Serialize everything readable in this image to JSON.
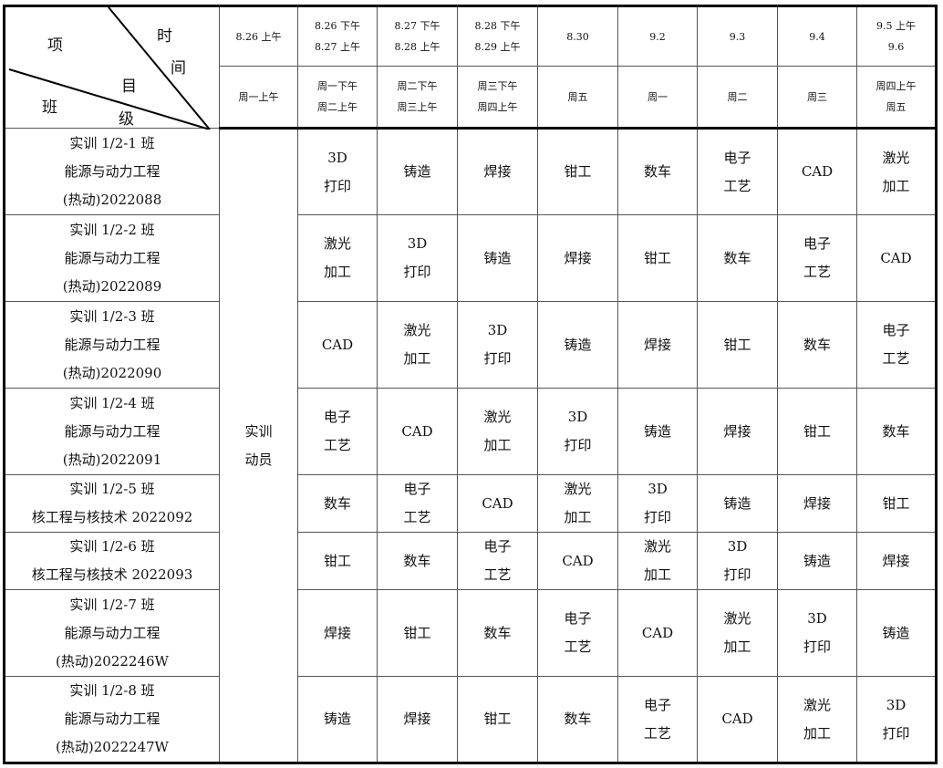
{
  "corner": {
    "top_left": "项",
    "top_right_1": "时",
    "top_right_2": "间",
    "mid": "目",
    "bottom_left": "班",
    "bottom_mid": "级"
  },
  "dates": [
    [
      "8.26 上午"
    ],
    [
      "8.26 下午",
      "8.27 上午"
    ],
    [
      "8.27 下午",
      "8.28 上午"
    ],
    [
      "8.28 下午",
      "8.29 上午"
    ],
    [
      "8.30"
    ],
    [
      "9.2"
    ],
    [
      "9.3"
    ],
    [
      "9.4"
    ],
    [
      "9.5 上午",
      "9.6"
    ]
  ],
  "weekdays": [
    [
      "周一上午"
    ],
    [
      "周一下午",
      "周二上午"
    ],
    [
      "周二下午",
      "周三上午"
    ],
    [
      "周三下午",
      "周四上午"
    ],
    [
      "周五"
    ],
    [
      "周一"
    ],
    [
      "周二"
    ],
    [
      "周三"
    ],
    [
      "周四上午",
      "周五"
    ]
  ],
  "mobilization": [
    "实训",
    "动员"
  ],
  "rows": [
    {
      "cls": [
        "实训 1/2-1 班",
        "能源与动力工程",
        "(热动)2022088"
      ],
      "cells": [
        [
          "3D",
          "打印"
        ],
        [
          "铸造"
        ],
        [
          "焊接"
        ],
        [
          "钳工"
        ],
        [
          "数车"
        ],
        [
          "电子",
          "工艺"
        ],
        [
          "CAD"
        ],
        [
          "激光",
          "加工"
        ]
      ]
    },
    {
      "cls": [
        "实训 1/2-2 班",
        "能源与动力工程",
        "(热动)2022089"
      ],
      "cells": [
        [
          "激光",
          "加工"
        ],
        [
          "3D",
          "打印"
        ],
        [
          "铸造"
        ],
        [
          "焊接"
        ],
        [
          "钳工"
        ],
        [
          "数车"
        ],
        [
          "电子",
          "工艺"
        ],
        [
          "CAD"
        ]
      ]
    },
    {
      "cls": [
        "实训 1/2-3 班",
        "能源与动力工程",
        "(热动)2022090"
      ],
      "cells": [
        [
          "CAD"
        ],
        [
          "激光",
          "加工"
        ],
        [
          "3D",
          "打印"
        ],
        [
          "铸造"
        ],
        [
          "焊接"
        ],
        [
          "钳工"
        ],
        [
          "数车"
        ],
        [
          "电子",
          "工艺"
        ]
      ]
    },
    {
      "cls": [
        "实训 1/2-4 班",
        "能源与动力工程",
        "(热动)2022091"
      ],
      "cells": [
        [
          "电子",
          "工艺"
        ],
        [
          "CAD"
        ],
        [
          "激光",
          "加工"
        ],
        [
          "3D",
          "打印"
        ],
        [
          "铸造"
        ],
        [
          "焊接"
        ],
        [
          "钳工"
        ],
        [
          "数车"
        ]
      ]
    },
    {
      "cls": [
        "实训 1/2-5 班",
        "核工程与核技术 2022092"
      ],
      "cells": [
        [
          "数车"
        ],
        [
          "电子",
          "工艺"
        ],
        [
          "CAD"
        ],
        [
          "激光",
          "加工"
        ],
        [
          "3D",
          "打印"
        ],
        [
          "铸造"
        ],
        [
          "焊接"
        ],
        [
          "钳工"
        ]
      ]
    },
    {
      "cls": [
        "实训 1/2-6 班",
        "核工程与核技术 2022093"
      ],
      "cells": [
        [
          "钳工"
        ],
        [
          "数车"
        ],
        [
          "电子",
          "工艺"
        ],
        [
          "CAD"
        ],
        [
          "激光",
          "加工"
        ],
        [
          "3D",
          "打印"
        ],
        [
          "铸造"
        ],
        [
          "焊接"
        ]
      ]
    },
    {
      "cls": [
        "实训 1/2-7 班",
        "能源与动力工程",
        "(热动)2022246W"
      ],
      "cells": [
        [
          "焊接"
        ],
        [
          "钳工"
        ],
        [
          "数车"
        ],
        [
          "电子",
          "工艺"
        ],
        [
          "CAD"
        ],
        [
          "激光",
          "加工"
        ],
        [
          "3D",
          "打印"
        ],
        [
          "铸造"
        ]
      ]
    },
    {
      "cls": [
        "实训 1/2-8 班",
        "能源与动力工程",
        "(热动)2022247W"
      ],
      "cells": [
        [
          "铸造"
        ],
        [
          "焊接"
        ],
        [
          "钳工"
        ],
        [
          "数车"
        ],
        [
          "电子",
          "工艺"
        ],
        [
          "CAD"
        ],
        [
          "激光",
          "加工"
        ],
        [
          "3D",
          "打印"
        ]
      ]
    }
  ]
}
